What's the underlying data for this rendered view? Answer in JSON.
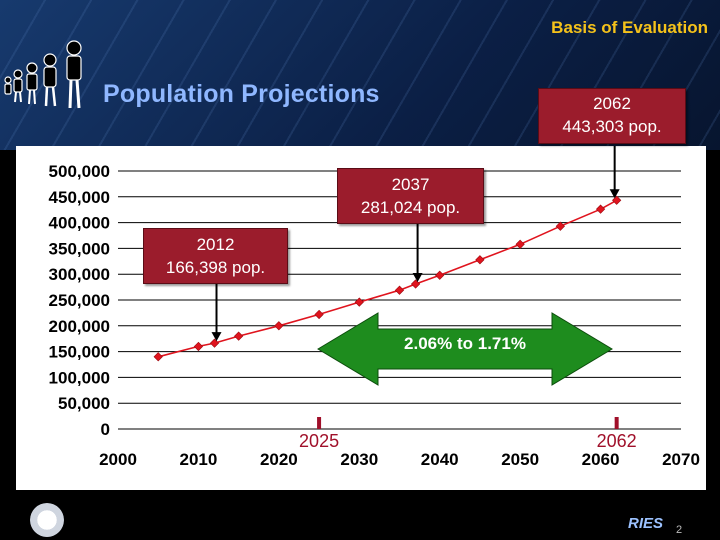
{
  "header": {
    "section_label": "Basis of Evaluation",
    "title": "Population Projections"
  },
  "callouts": {
    "c2062": {
      "year": "2062",
      "pop": "443,303 pop."
    },
    "c2037": {
      "year": "2037",
      "pop": "281,024 pop."
    },
    "c2012": {
      "year": "2012",
      "pop": "166,398 pop."
    }
  },
  "growth_arrow": {
    "label": "2.06%  to 1.71%",
    "color": "#1e8c1e"
  },
  "footer": {
    "logo_text": "RIES",
    "page_number": "2"
  },
  "chart_data": {
    "type": "line",
    "title": "",
    "xlabel": "",
    "ylabel": "",
    "xlim": [
      2000,
      2070
    ],
    "ylim": [
      0,
      500000
    ],
    "x_ticks": [
      "2000",
      "2010",
      "2020",
      "2030",
      "2040",
      "2050",
      "2060",
      "2070"
    ],
    "y_ticks": [
      "0",
      "50,000",
      "100,000",
      "150,000",
      "200,000",
      "250,000",
      "300,000",
      "350,000",
      "400,000",
      "450,000",
      "500,000"
    ],
    "grid": "horizontal",
    "series": [
      {
        "color": "#e0141e",
        "x": [
          2005,
          2010,
          2012,
          2015,
          2020,
          2025,
          2030,
          2035,
          2037,
          2040,
          2045,
          2050,
          2055,
          2060,
          2062
        ],
        "y": [
          140000,
          160000,
          166398,
          180000,
          200000,
          222000,
          246000,
          269000,
          281024,
          298000,
          328000,
          358000,
          393000,
          426000,
          443303
        ]
      }
    ],
    "markers": [
      {
        "x": 2025,
        "label": "2025",
        "color": "#a0102a"
      },
      {
        "x": 2062,
        "label": "2062",
        "color": "#a0102a"
      }
    ]
  }
}
